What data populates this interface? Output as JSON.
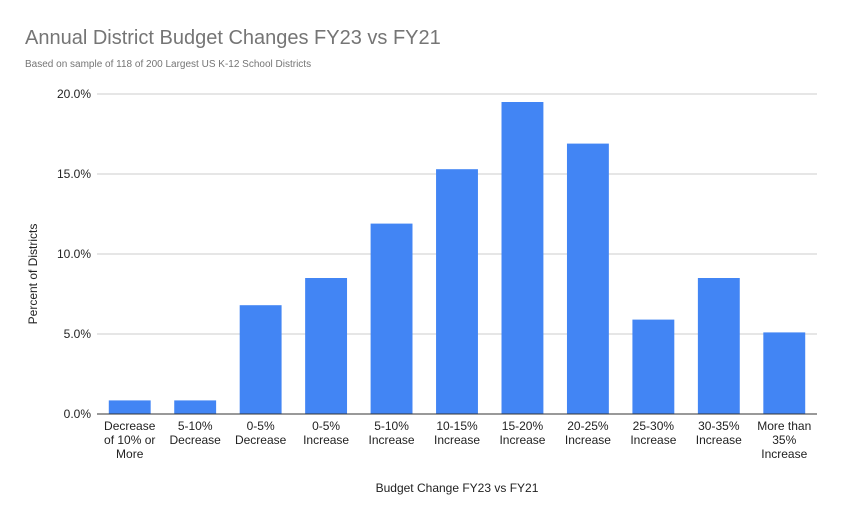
{
  "chart_data": {
    "type": "bar",
    "title": "Annual District Budget Changes FY23 vs FY21",
    "subtitle": "Based on sample of 118 of 200 Largest US K-12 School Districts",
    "xlabel": "Budget Change FY23 vs FY21",
    "ylabel": "Percent of Districts",
    "ylim": [
      0,
      20
    ],
    "yticks": [
      0,
      5,
      10,
      15,
      20
    ],
    "ytick_labels": [
      "0.0%",
      "5.0%",
      "10.0%",
      "15.0%",
      "20.0%"
    ],
    "grid": true,
    "legend": "none",
    "bar_color": "#4285f4",
    "categories": [
      [
        "Decrease",
        "of 10% or",
        "More"
      ],
      [
        "5-10%",
        "Decrease"
      ],
      [
        "0-5%",
        "Decrease"
      ],
      [
        "0-5%",
        "Increase"
      ],
      [
        "5-10%",
        "Increase"
      ],
      [
        "10-15%",
        "Increase"
      ],
      [
        "15-20%",
        "Increase"
      ],
      [
        "20-25%",
        "Increase"
      ],
      [
        "25-30%",
        "Increase"
      ],
      [
        "30-35%",
        "Increase"
      ],
      [
        "More than",
        "35%",
        "Increase"
      ]
    ],
    "values": [
      0.85,
      0.85,
      6.8,
      8.5,
      11.9,
      15.3,
      19.5,
      16.9,
      5.9,
      8.5,
      5.1
    ]
  }
}
